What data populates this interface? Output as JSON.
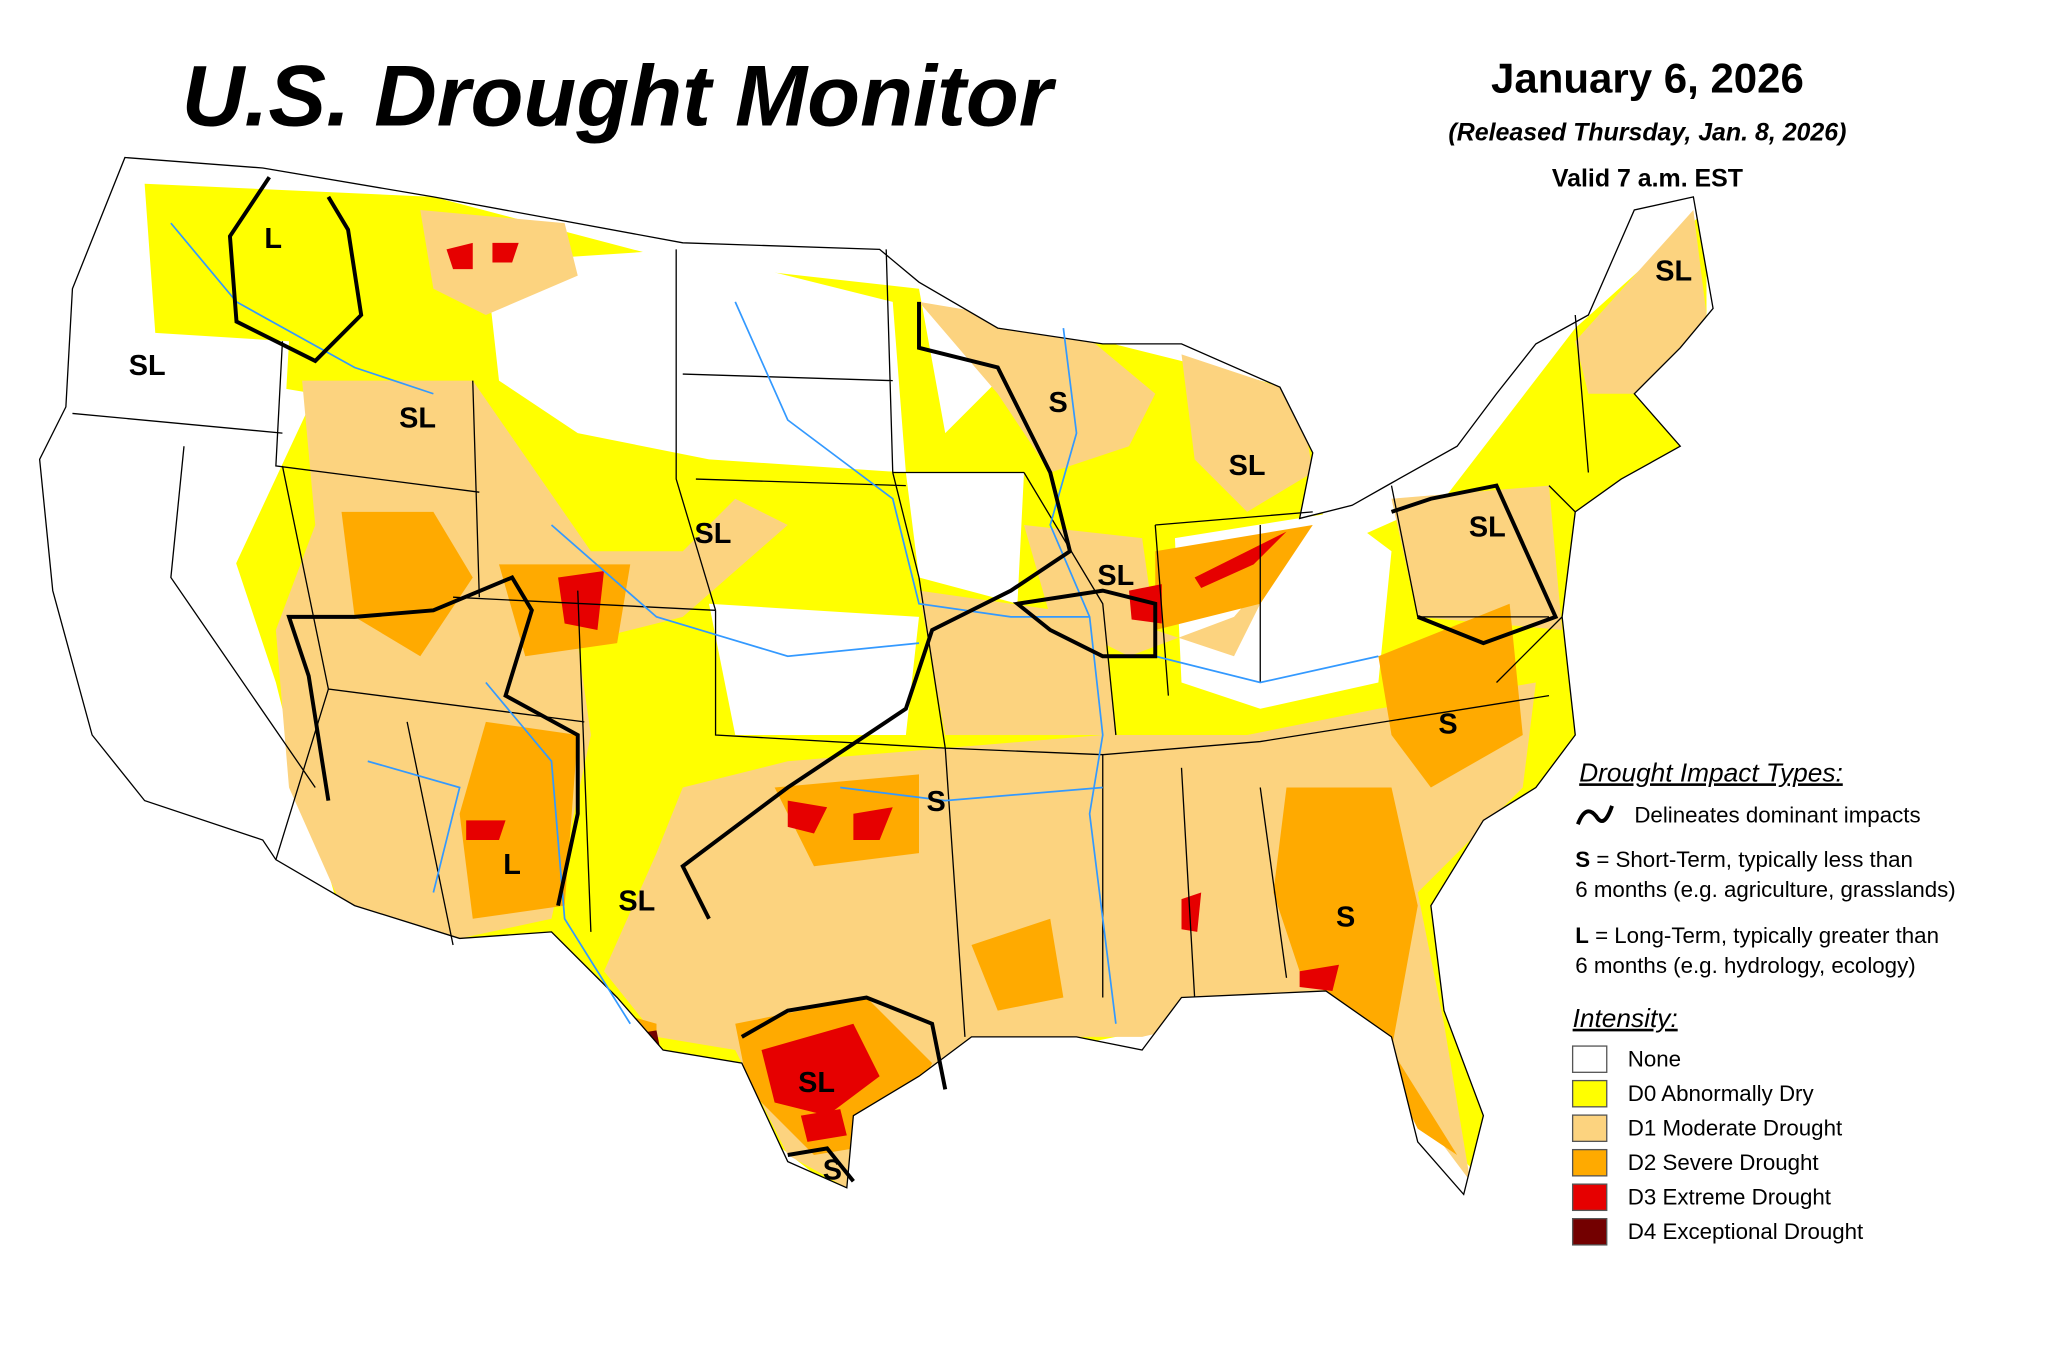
{
  "header": {
    "title": "U.S. Drought Monitor",
    "date": "January 6, 2026",
    "released": "(Released Thursday, Jan. 8, 2026)",
    "valid": "Valid 7 a.m. EST"
  },
  "map_labels": [
    "L",
    "SL",
    "SL",
    "SL",
    "S",
    "SL",
    "SL",
    "SL",
    "SL",
    "S",
    "S",
    "L",
    "SL",
    "S",
    "SL",
    "S"
  ],
  "legend": {
    "impact_title": "Drought Impact Types:",
    "delineates": "Delineates dominant impacts",
    "short_term_key": "S",
    "short_term_text": " = Short-Term, typically less than",
    "short_term_text2": "6 months (e.g. agriculture, grasslands)",
    "long_term_key": "L",
    "long_term_text": " = Long-Term, typically greater than",
    "long_term_text2": "6 months (e.g. hydrology, ecology)",
    "intensity_title": "Intensity:",
    "categories": [
      {
        "label": "None",
        "color": "#ffffff"
      },
      {
        "label": "D0 Abnormally Dry",
        "color": "#ffff00"
      },
      {
        "label": "D1 Moderate Drought",
        "color": "#fcd37f"
      },
      {
        "label": "D2 Severe Drought",
        "color": "#ffaa00"
      },
      {
        "label": "D3 Extreme Drought",
        "color": "#e60000"
      },
      {
        "label": "D4 Exceptional Drought",
        "color": "#730000"
      }
    ]
  }
}
